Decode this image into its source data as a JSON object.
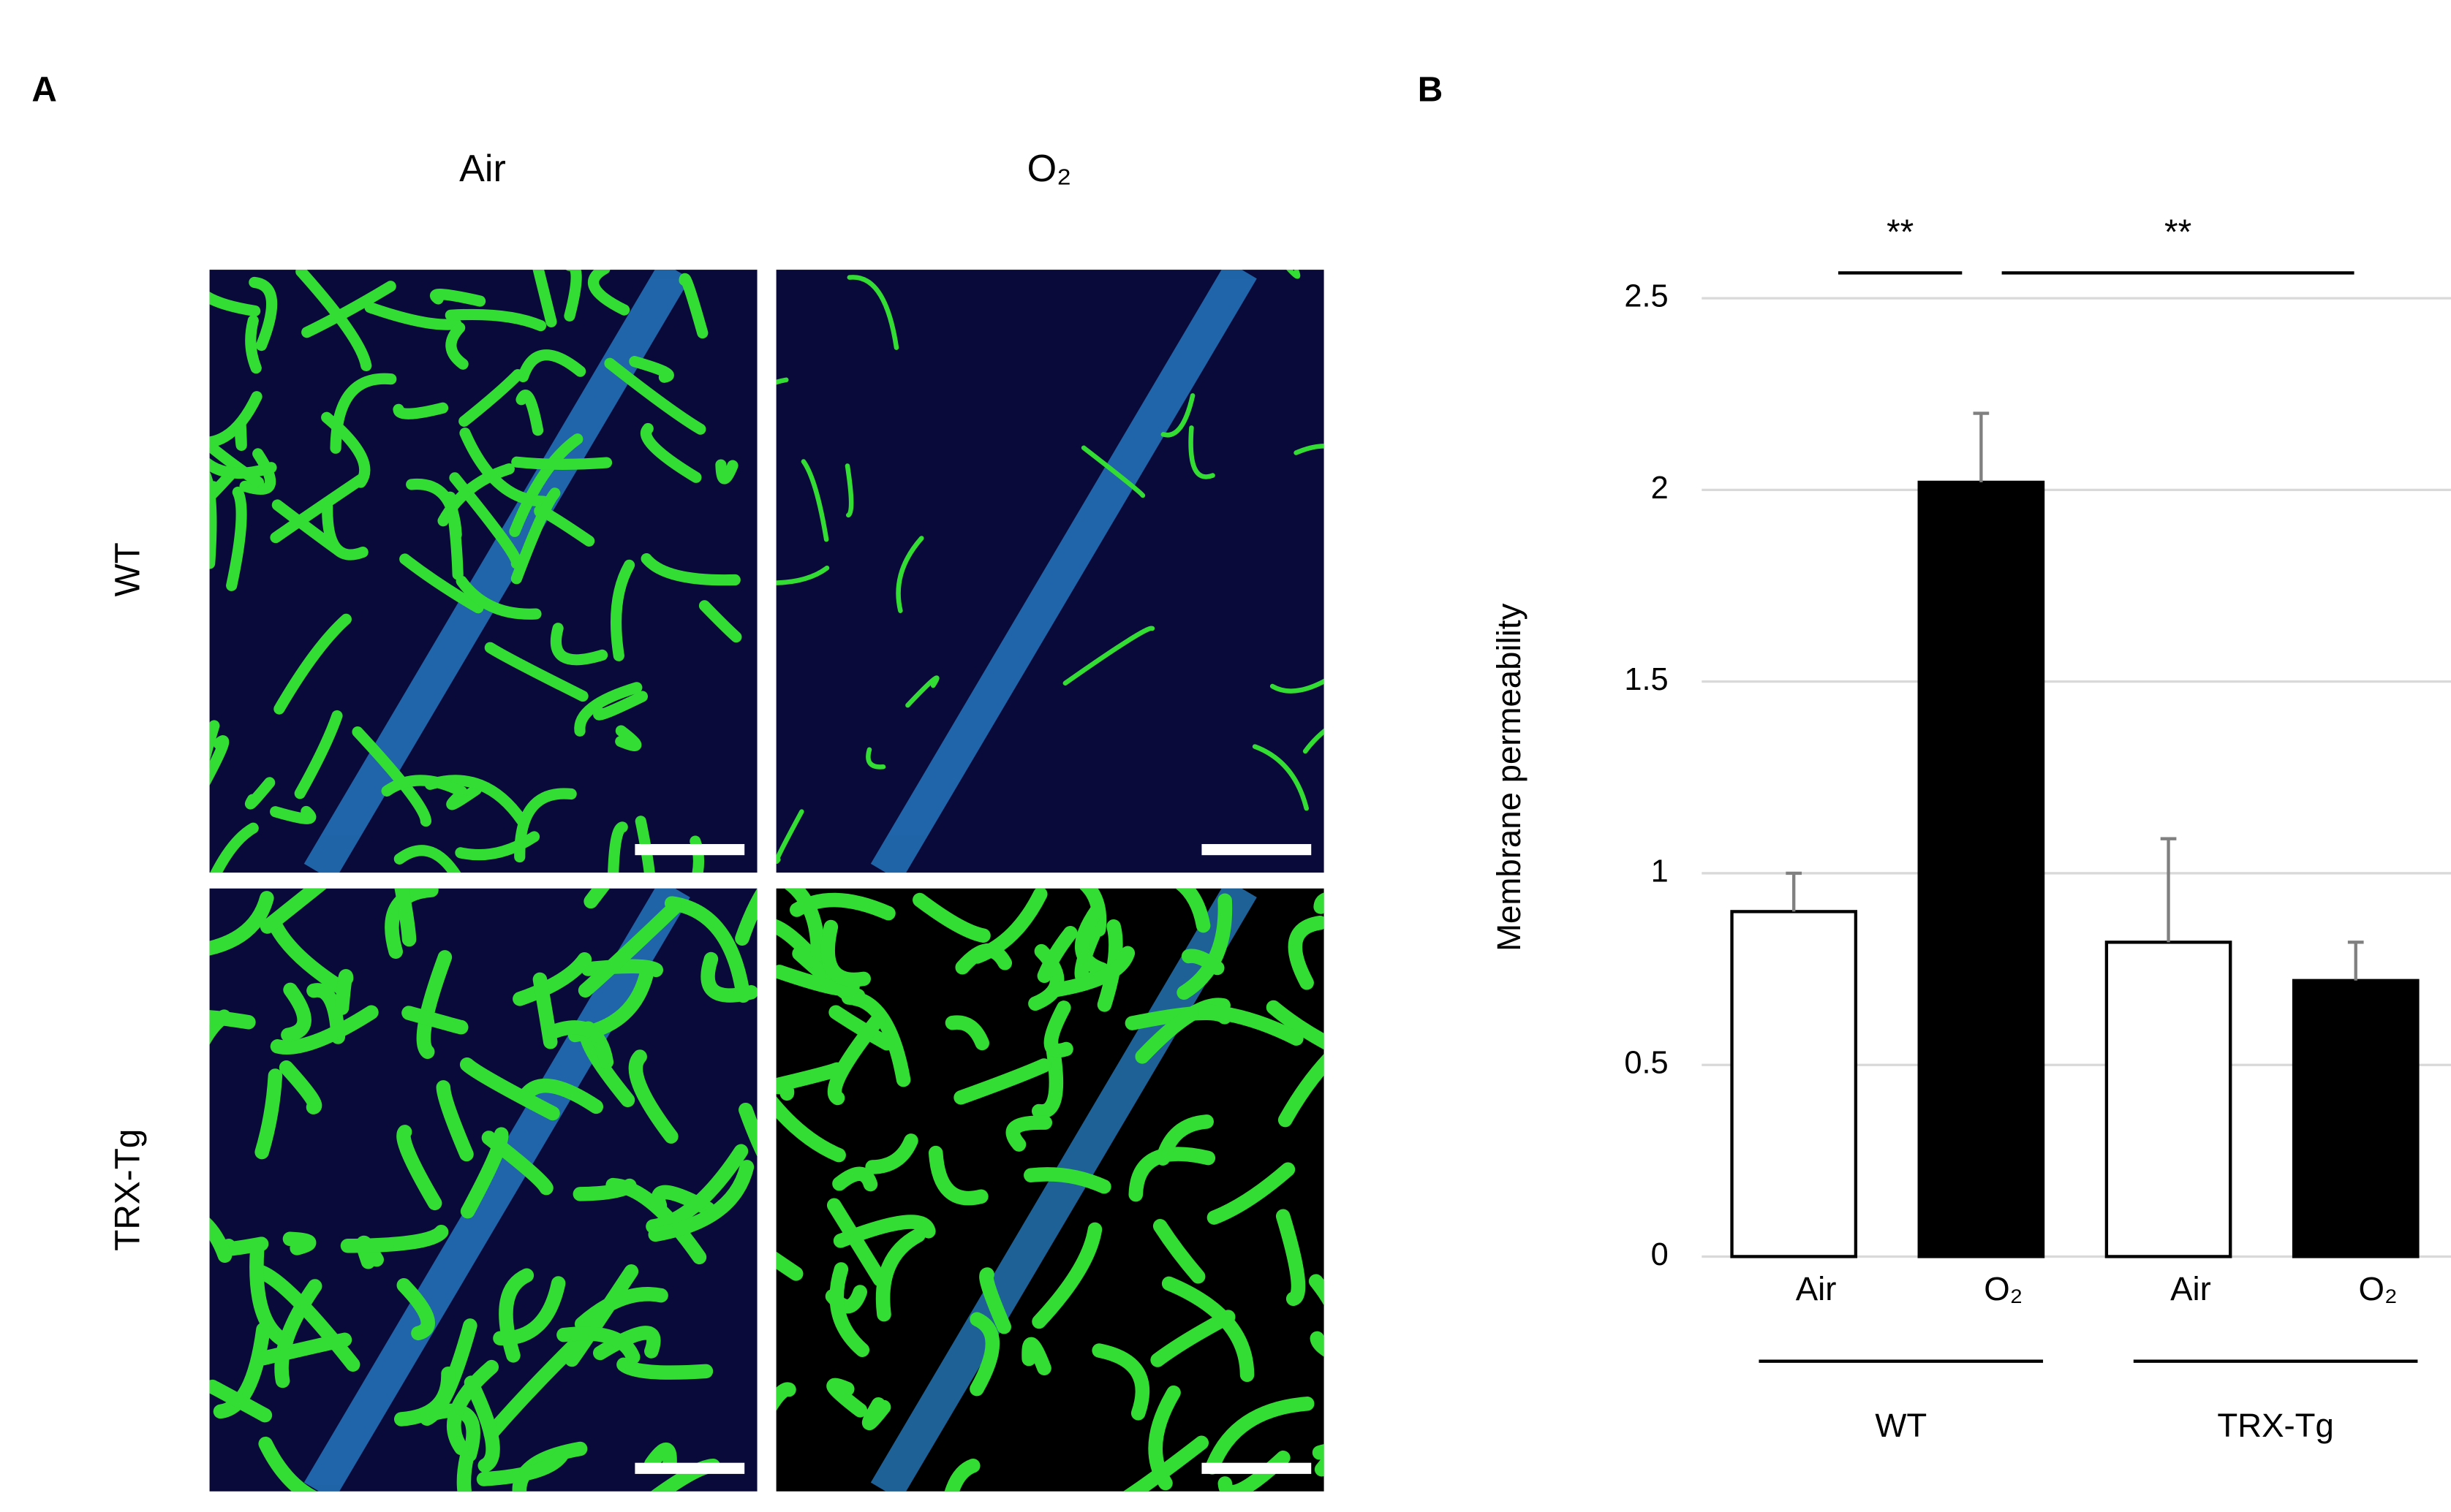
{
  "panels": {
    "a": {
      "label": "A",
      "columns": [
        "Air",
        "O₂"
      ],
      "rows": [
        "WT",
        "TRX-Tg"
      ]
    }
  },
  "chart_data": {
    "type": "bar",
    "panel_label": "B",
    "y_label": "Membrane permeability",
    "categories": [
      "Air",
      "O₂",
      "Air",
      "O₂"
    ],
    "values": [
      0.9,
      2.02,
      0.82,
      0.72
    ],
    "errors": [
      0.1,
      0.18,
      0.27,
      0.1
    ],
    "colors": [
      "#ffffff",
      "#000000",
      "#ffffff",
      "#000000"
    ],
    "error_color": "#808080",
    "ylim": [
      0,
      2.5
    ],
    "yticks": [
      0,
      0.5,
      1,
      1.5,
      2,
      2.5
    ],
    "grid": true,
    "significance": [
      {
        "label": "**",
        "between": [
          0,
          1
        ]
      },
      {
        "label": "**",
        "between": [
          1,
          3
        ]
      }
    ],
    "groups": [
      {
        "label": "WT",
        "categories": [
          0,
          1
        ]
      },
      {
        "label": "TRX-Tg",
        "categories": [
          2,
          3
        ]
      }
    ]
  }
}
